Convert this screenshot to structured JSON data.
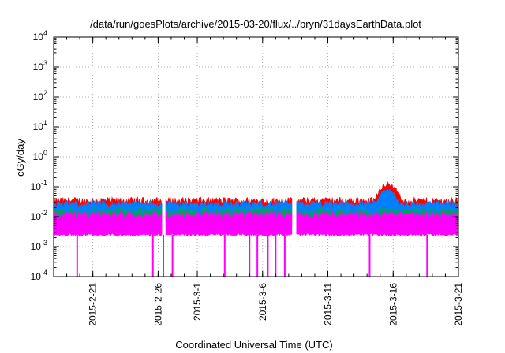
{
  "chart_data": {
    "type": "line",
    "title": "/data/run/goesPlots/archive/2015-03-20/flux/../bryn/31daysEarthData.plot",
    "xlabel": "Coordinated Universal Time (UTC)",
    "ylabel": "cGy/day",
    "yscale": "log",
    "ylim": [
      0.0001,
      10000
    ],
    "xlim": [
      "2015-02-18",
      "2015-03-21"
    ],
    "grid": true,
    "legend": "none",
    "x_ticks": [
      "2015-2-21",
      "2015-2-26",
      "2015-3-1",
      "2015-3-6",
      "2015-3-11",
      "2015-3-16",
      "2015-3-21"
    ],
    "y_ticks": [
      {
        "value": 0.0001,
        "base": "10",
        "exp": "-4"
      },
      {
        "value": 0.001,
        "base": "10",
        "exp": "-3"
      },
      {
        "value": 0.01,
        "base": "10",
        "exp": "-2"
      },
      {
        "value": 0.1,
        "base": "10",
        "exp": "-1"
      },
      {
        "value": 1,
        "base": "10",
        "exp": "0"
      },
      {
        "value": 10,
        "base": "10",
        "exp": "1"
      },
      {
        "value": 100,
        "base": "10",
        "exp": "2"
      },
      {
        "value": 1000,
        "base": "10",
        "exp": "3"
      },
      {
        "value": 10000,
        "base": "10",
        "exp": "4"
      }
    ],
    "data_gaps": [
      [
        "2015-02-26",
        "2015-02-26"
      ],
      [
        "2015-03-08",
        "2015-03-08"
      ]
    ],
    "series": [
      {
        "color": "#ff0000",
        "approx_min": 0.012,
        "approx_max": 0.045,
        "peak": {
          "x": "2015-03-15",
          "y": 0.15
        }
      },
      {
        "color": "#0080ff",
        "approx_min": 0.008,
        "approx_max": 0.035,
        "peak": {
          "x": "2015-03-15",
          "y": 0.09
        }
      },
      {
        "color": "#00a060",
        "approx_min": 0.006,
        "approx_max": 0.02
      },
      {
        "color": "#ff00ff",
        "approx_min": 0.0025,
        "approx_max": 0.015,
        "dropouts_to": 0.0001
      }
    ]
  }
}
